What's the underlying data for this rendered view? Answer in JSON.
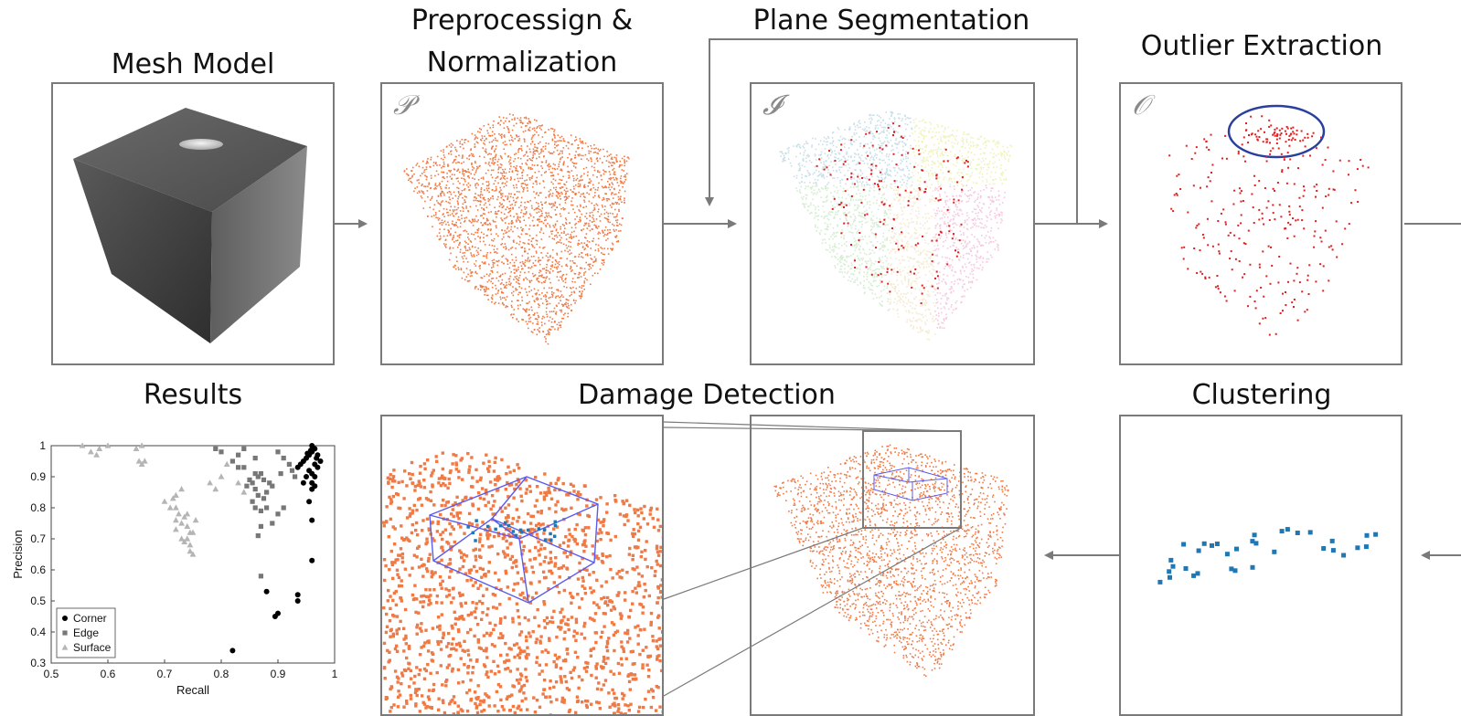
{
  "stages": {
    "mesh": {
      "title": "Mesh Model"
    },
    "preprocessing": {
      "title_line1": "Preprocessign &",
      "title_line2": "Normalization",
      "symbol": "𝒫"
    },
    "segmentation": {
      "title": "Plane Segmentation",
      "symbol": "𝓘"
    },
    "outlier": {
      "title": "Outlier Extraction",
      "symbol": "𝒪"
    },
    "results": {
      "title": "Results"
    },
    "damage": {
      "title": "Damage Detection"
    },
    "clustering": {
      "title": "Clustering"
    }
  },
  "colors": {
    "point_orange": "#f07a45",
    "outlier_red": "#e02020",
    "cluster_blue": "#1f77b4",
    "ellipse_blue": "#2a3f9e",
    "box_blue": "#5b5bf0",
    "arrow_gray": "#7a7a7a"
  },
  "chart_data": {
    "type": "scatter",
    "xlabel": "Recall",
    "ylabel": "Precision",
    "xlim": [
      0.5,
      1
    ],
    "ylim": [
      0.3,
      1
    ],
    "xticks": [
      "0.5",
      "0.6",
      "0.7",
      "0.8",
      "0.9",
      "1"
    ],
    "yticks": [
      "0.3",
      "0.4",
      "0.5",
      "0.6",
      "0.7",
      "0.8",
      "0.9",
      "1"
    ],
    "legend_position": "bottom-left",
    "series": [
      {
        "name": "Corner",
        "marker": "circle",
        "color": "#000000",
        "points": [
          [
            0.82,
            0.34
          ],
          [
            0.88,
            0.53
          ],
          [
            0.895,
            0.45
          ],
          [
            0.9,
            0.46
          ],
          [
            0.935,
            0.52
          ],
          [
            0.935,
            0.5
          ],
          [
            0.96,
            0.63
          ],
          [
            0.96,
            0.76
          ],
          [
            0.955,
            0.82
          ],
          [
            0.96,
            0.86
          ],
          [
            0.965,
            0.87
          ],
          [
            0.935,
            0.93
          ],
          [
            0.94,
            0.94
          ],
          [
            0.945,
            0.95
          ],
          [
            0.95,
            0.96
          ],
          [
            0.955,
            0.97
          ],
          [
            0.96,
            0.98
          ],
          [
            0.965,
            0.99
          ],
          [
            0.96,
            1.0
          ],
          [
            0.955,
            0.92
          ],
          [
            0.96,
            0.91
          ],
          [
            0.965,
            0.9
          ],
          [
            0.97,
            0.93
          ],
          [
            0.975,
            0.95
          ],
          [
            0.97,
            0.97
          ],
          [
            0.95,
            0.9
          ],
          [
            0.945,
            0.88
          ],
          [
            0.96,
            0.88
          ],
          [
            0.965,
            0.94
          ],
          [
            0.958,
            0.985
          ],
          [
            0.968,
            0.96
          ],
          [
            0.952,
            0.975
          ]
        ]
      },
      {
        "name": "Edge",
        "marker": "square",
        "color": "#777777",
        "points": [
          [
            0.79,
            0.99
          ],
          [
            0.8,
            0.98
          ],
          [
            0.82,
            0.95
          ],
          [
            0.83,
            0.97
          ],
          [
            0.84,
            0.93
          ],
          [
            0.85,
            0.89
          ],
          [
            0.855,
            0.88
          ],
          [
            0.86,
            0.91
          ],
          [
            0.865,
            0.9
          ],
          [
            0.87,
            0.91
          ],
          [
            0.875,
            0.89
          ],
          [
            0.86,
            0.86
          ],
          [
            0.865,
            0.84
          ],
          [
            0.855,
            0.82
          ],
          [
            0.86,
            0.8
          ],
          [
            0.87,
            0.79
          ],
          [
            0.88,
            0.8
          ],
          [
            0.875,
            0.83
          ],
          [
            0.88,
            0.85
          ],
          [
            0.885,
            0.88
          ],
          [
            0.89,
            0.87
          ],
          [
            0.87,
            0.74
          ],
          [
            0.865,
            0.71
          ],
          [
            0.87,
            0.58
          ],
          [
            0.89,
            0.75
          ],
          [
            0.9,
            0.78
          ],
          [
            0.91,
            0.8
          ],
          [
            0.905,
            0.91
          ],
          [
            0.92,
            0.94
          ],
          [
            0.925,
            0.92
          ],
          [
            0.93,
            0.9
          ],
          [
            0.91,
            0.96
          ],
          [
            0.9,
            0.98
          ],
          [
            0.84,
            0.99
          ],
          [
            0.83,
            0.93
          ],
          [
            0.845,
            0.87
          ],
          [
            0.86,
            0.96
          ]
        ]
      },
      {
        "name": "Surface",
        "marker": "triangle",
        "color": "#b5b5b5",
        "points": [
          [
            0.555,
            1.0
          ],
          [
            0.57,
            0.98
          ],
          [
            0.58,
            0.97
          ],
          [
            0.585,
            0.99
          ],
          [
            0.6,
            1.0
          ],
          [
            0.65,
            0.99
          ],
          [
            0.66,
            1.0
          ],
          [
            0.655,
            0.95
          ],
          [
            0.66,
            0.94
          ],
          [
            0.665,
            0.95
          ],
          [
            0.7,
            0.82
          ],
          [
            0.71,
            0.8
          ],
          [
            0.715,
            0.83
          ],
          [
            0.72,
            0.8
          ],
          [
            0.725,
            0.78
          ],
          [
            0.72,
            0.76
          ],
          [
            0.73,
            0.75
          ],
          [
            0.735,
            0.77
          ],
          [
            0.74,
            0.74
          ],
          [
            0.745,
            0.72
          ],
          [
            0.74,
            0.7
          ],
          [
            0.745,
            0.68
          ],
          [
            0.75,
            0.65
          ],
          [
            0.745,
            0.66
          ],
          [
            0.75,
            0.72
          ],
          [
            0.755,
            0.76
          ],
          [
            0.72,
            0.73
          ],
          [
            0.73,
            0.7
          ],
          [
            0.735,
            0.69
          ],
          [
            0.72,
            0.84
          ],
          [
            0.73,
            0.86
          ],
          [
            0.78,
            0.88
          ],
          [
            0.79,
            0.86
          ],
          [
            0.8,
            0.9
          ],
          [
            0.81,
            0.94
          ],
          [
            0.83,
            0.88
          ],
          [
            0.84,
            0.85
          ],
          [
            0.74,
            0.78
          ]
        ]
      }
    ]
  }
}
